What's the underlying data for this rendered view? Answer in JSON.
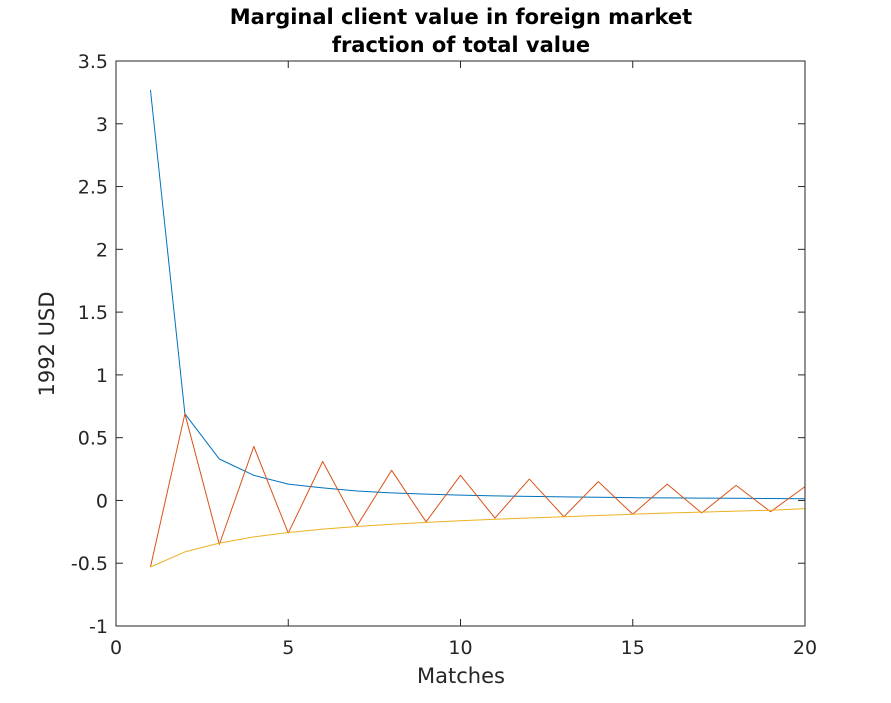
{
  "chart_data": {
    "type": "line",
    "title": "Marginal client value in foreign market",
    "subtitle": "fraction of total value",
    "xlabel": "Matches",
    "ylabel": "1992 USD",
    "xlim": [
      0,
      20
    ],
    "ylim": [
      -1,
      3.5
    ],
    "xticks": [
      0,
      5,
      10,
      15,
      20
    ],
    "xtick_labels": [
      "0",
      "5",
      "10",
      "15",
      "20"
    ],
    "yticks": [
      -1,
      -0.5,
      0,
      0.5,
      1,
      1.5,
      2,
      2.5,
      3,
      3.5
    ],
    "ytick_labels": [
      "-1",
      "-0.5",
      "0",
      "0.5",
      "1",
      "1.5",
      "2",
      "2.5",
      "3",
      "3.5"
    ],
    "grid": false,
    "x": [
      1,
      2,
      3,
      4,
      5,
      6,
      7,
      8,
      9,
      10,
      11,
      12,
      13,
      14,
      15,
      16,
      17,
      18,
      19,
      20
    ],
    "series": [
      {
        "color": "#0072BD",
        "values": [
          3.27,
          0.69,
          0.33,
          0.2,
          0.13,
          0.1,
          0.075,
          0.06,
          0.05,
          0.042,
          0.036,
          0.032,
          0.028,
          0.025,
          0.022,
          0.02,
          0.018,
          0.017,
          0.015,
          0.014
        ]
      },
      {
        "color": "#D95319",
        "values": [
          -0.53,
          0.69,
          -0.35,
          0.43,
          -0.26,
          0.31,
          -0.2,
          0.24,
          -0.17,
          0.2,
          -0.14,
          0.17,
          -0.13,
          0.15,
          -0.11,
          0.13,
          -0.1,
          0.12,
          -0.09,
          0.11
        ]
      },
      {
        "color": "#EDB120",
        "values": [
          -0.53,
          -0.41,
          -0.34,
          -0.29,
          -0.255,
          -0.228,
          -0.208,
          -0.19,
          -0.175,
          -0.162,
          -0.15,
          -0.14,
          -0.13,
          -0.12,
          -0.11,
          -0.1,
          -0.093,
          -0.085,
          -0.078,
          -0.065
        ]
      }
    ]
  }
}
